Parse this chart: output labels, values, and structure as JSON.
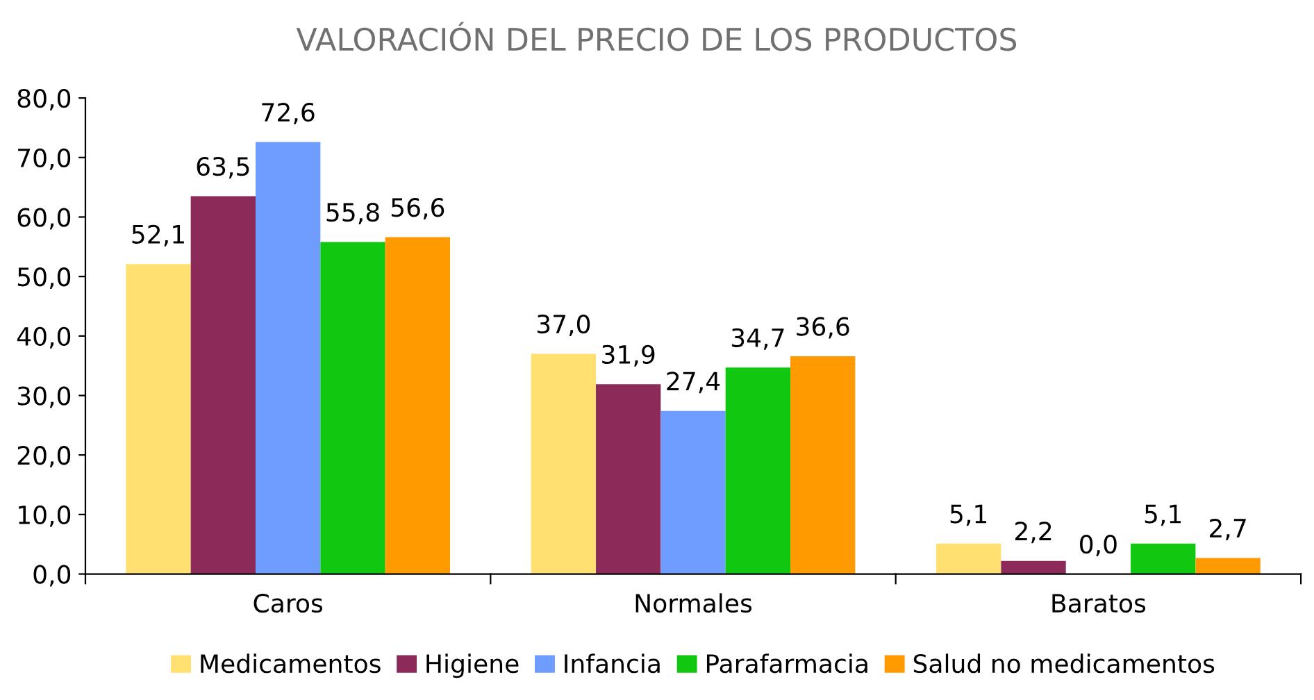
{
  "chart_data": {
    "type": "bar",
    "title": "VALORACIÓN DEL PRECIO DE LOS PRODUCTOS",
    "categories": [
      "Caros",
      "Normales",
      "Baratos"
    ],
    "series": [
      {
        "name": "Medicamentos",
        "color": "#ffe070",
        "values": [
          52.1,
          37.0,
          5.1
        ],
        "value_labels": [
          "52,1",
          "37,0",
          "5,1"
        ]
      },
      {
        "name": "Higiene",
        "color": "#8c2a5a",
        "values": [
          63.5,
          31.9,
          2.2
        ],
        "value_labels": [
          "63,5",
          "31,9",
          "2,2"
        ]
      },
      {
        "name": "Infancia",
        "color": "#6f9cff",
        "values": [
          72.6,
          27.4,
          0.0
        ],
        "value_labels": [
          "72,6",
          "27,4",
          "0,0"
        ]
      },
      {
        "name": "Parafarmacia",
        "color": "#10c810",
        "values": [
          55.8,
          34.7,
          5.1
        ],
        "value_labels": [
          "55,8",
          "34,7",
          "5,1"
        ]
      },
      {
        "name": "Salud no medicamentos",
        "color": "#ff9a00",
        "values": [
          56.6,
          36.6,
          2.7
        ],
        "value_labels": [
          "56,6",
          "36,6",
          "2,7"
        ]
      }
    ],
    "ylim": [
      0,
      80
    ],
    "yticks": [
      {
        "value": 0,
        "label": "0,0"
      },
      {
        "value": 10,
        "label": "10,0"
      },
      {
        "value": 20,
        "label": "20,0"
      },
      {
        "value": 30,
        "label": "30,0"
      },
      {
        "value": 40,
        "label": "40,0"
      },
      {
        "value": 50,
        "label": "50,0"
      },
      {
        "value": 60,
        "label": "60,0"
      },
      {
        "value": 70,
        "label": "70,0"
      },
      {
        "value": 80,
        "label": "80,0"
      }
    ],
    "grid": false,
    "legend": "bottom"
  }
}
